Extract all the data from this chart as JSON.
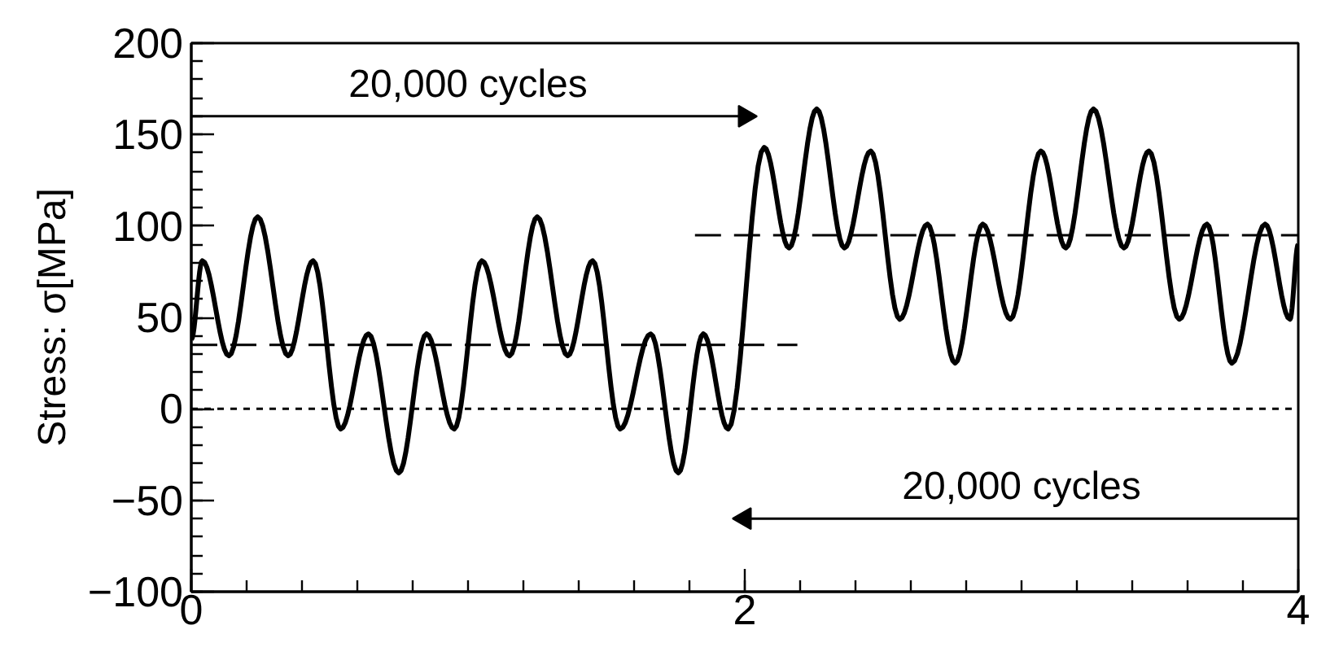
{
  "chart_data": {
    "type": "line",
    "ylabel": "Stress: σ[MPa]",
    "xlim": [
      0,
      4
    ],
    "ylim": [
      -100,
      200
    ],
    "xticks": [
      0,
      2,
      4
    ],
    "yticks": [
      {
        "value": -100,
        "label": "−100"
      },
      {
        "value": -50,
        "label": "−50"
      },
      0,
      50,
      100,
      150,
      200
    ],
    "marker": "none",
    "series": [
      {
        "color": "#000000",
        "line_style": "solid",
        "x": [
          0,
          0.04,
          0.136,
          0.24,
          0.35,
          0.44,
          0.54,
          0.64,
          0.75,
          0.85,
          0.95,
          1.05,
          1.15,
          1.25,
          1.36,
          1.45,
          1.55,
          1.66,
          1.76,
          1.85,
          1.94,
          2.07,
          2.16,
          2.26,
          2.36,
          2.455,
          2.56,
          2.66,
          2.76,
          2.86,
          2.96,
          3.07,
          3.16,
          3.26,
          3.37,
          3.46,
          3.57,
          3.67,
          3.76,
          3.88,
          3.97,
          4
        ],
        "values": [
          38,
          81,
          29,
          105,
          29,
          81,
          -11,
          41,
          -35,
          41,
          -11,
          81,
          29,
          105,
          29,
          81,
          -11,
          41,
          -35,
          41,
          -11,
          143,
          88,
          164,
          88,
          141,
          49,
          101,
          25,
          101,
          49,
          141,
          88,
          164,
          88,
          141,
          49,
          101,
          25,
          101,
          49,
          90
        ]
      },
      {
        "color": "#000000",
        "line_style": "dashed",
        "x": [
          0,
          2.19
        ],
        "values": [
          35,
          35
        ]
      },
      {
        "color": "#000000",
        "line_style": "dashed",
        "x": [
          1.82,
          4
        ],
        "values": [
          95,
          95
        ]
      },
      {
        "color": "#000000",
        "line_style": "solid",
        "marker": "triangle",
        "x": [
          0,
          2
        ],
        "values": [
          160,
          160
        ]
      },
      {
        "color": "#000000",
        "line_style": "solid",
        "marker": "triangle",
        "x": [
          4,
          2
        ],
        "values": [
          -60,
          -60
        ]
      }
    ],
    "ref_lines": [
      {
        "axis": "y",
        "value": 0,
        "line_style": "dotted",
        "color": "#000000"
      }
    ],
    "annotations": [
      "20,000 cycles",
      "20,000 cycles"
    ]
  }
}
